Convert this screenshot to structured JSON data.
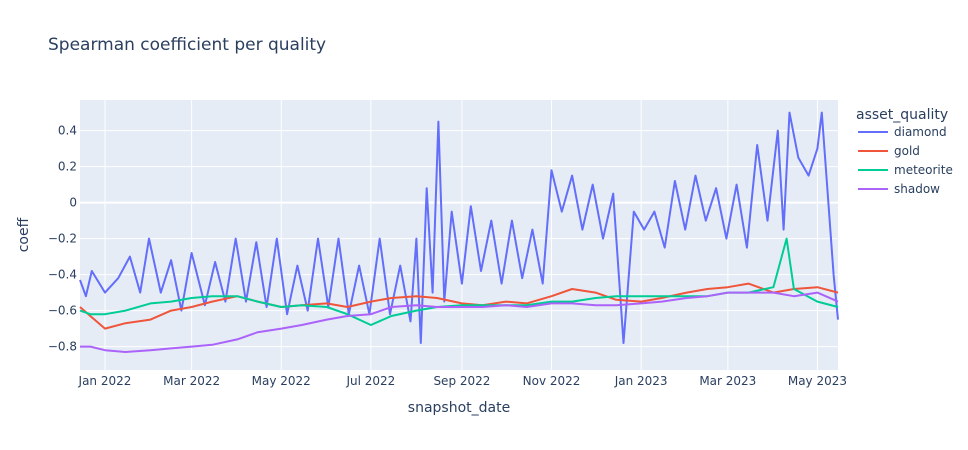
{
  "chart_data": {
    "type": "line",
    "title": "Spearman coefficient per quality",
    "xlabel": "snapshot_date",
    "ylabel": "coeff",
    "xlim": [
      "2021-12-15",
      "2023-05-15"
    ],
    "ylim": [
      -0.93,
      0.57
    ],
    "grid": true,
    "legend_title": "asset_quality",
    "legend_position": "right",
    "x_ticks": [
      {
        "date": "2022-01-01",
        "label": "Jan 2022"
      },
      {
        "date": "2022-03-01",
        "label": "Mar 2022"
      },
      {
        "date": "2022-05-01",
        "label": "May 2022"
      },
      {
        "date": "2022-07-01",
        "label": "Jul 2022"
      },
      {
        "date": "2022-09-01",
        "label": "Sep 2022"
      },
      {
        "date": "2022-11-01",
        "label": "Nov 2022"
      },
      {
        "date": "2023-01-01",
        "label": "Jan 2023"
      },
      {
        "date": "2023-03-01",
        "label": "Mar 2023"
      },
      {
        "date": "2023-05-01",
        "label": "May 2023"
      }
    ],
    "y_ticks": [
      {
        "value": 0.4,
        "label": "0.4"
      },
      {
        "value": 0.2,
        "label": "0.2"
      },
      {
        "value": 0,
        "label": "0"
      },
      {
        "value": -0.2,
        "label": "−0.2"
      },
      {
        "value": -0.4,
        "label": "−0.4"
      },
      {
        "value": -0.6,
        "label": "−0.6"
      },
      {
        "value": -0.8,
        "label": "−0.8"
      }
    ],
    "series": [
      {
        "name": "diamond",
        "color": "#636efa",
        "points": [
          [
            "2021-12-15",
            -0.43
          ],
          [
            "2021-12-19",
            -0.52
          ],
          [
            "2021-12-23",
            -0.38
          ],
          [
            "2022-01-01",
            -0.5
          ],
          [
            "2022-01-10",
            -0.42
          ],
          [
            "2022-01-18",
            -0.3
          ],
          [
            "2022-01-25",
            -0.5
          ],
          [
            "2022-01-31",
            -0.2
          ],
          [
            "2022-02-08",
            -0.5
          ],
          [
            "2022-02-15",
            -0.32
          ],
          [
            "2022-02-22",
            -0.6
          ],
          [
            "2022-03-01",
            -0.28
          ],
          [
            "2022-03-10",
            -0.57
          ],
          [
            "2022-03-17",
            -0.33
          ],
          [
            "2022-03-24",
            -0.55
          ],
          [
            "2022-03-31",
            -0.2
          ],
          [
            "2022-04-07",
            -0.55
          ],
          [
            "2022-04-14",
            -0.22
          ],
          [
            "2022-04-21",
            -0.58
          ],
          [
            "2022-04-28",
            -0.2
          ],
          [
            "2022-05-05",
            -0.62
          ],
          [
            "2022-05-12",
            -0.35
          ],
          [
            "2022-05-19",
            -0.6
          ],
          [
            "2022-05-26",
            -0.2
          ],
          [
            "2022-06-02",
            -0.58
          ],
          [
            "2022-06-09",
            -0.2
          ],
          [
            "2022-06-16",
            -0.62
          ],
          [
            "2022-06-23",
            -0.35
          ],
          [
            "2022-06-30",
            -0.62
          ],
          [
            "2022-07-07",
            -0.2
          ],
          [
            "2022-07-14",
            -0.62
          ],
          [
            "2022-07-21",
            -0.35
          ],
          [
            "2022-07-28",
            -0.66
          ],
          [
            "2022-08-01",
            -0.2
          ],
          [
            "2022-08-04",
            -0.78
          ],
          [
            "2022-08-08",
            0.08
          ],
          [
            "2022-08-12",
            -0.5
          ],
          [
            "2022-08-16",
            0.45
          ],
          [
            "2022-08-20",
            -0.55
          ],
          [
            "2022-08-25",
            -0.05
          ],
          [
            "2022-09-01",
            -0.45
          ],
          [
            "2022-09-07",
            -0.02
          ],
          [
            "2022-09-14",
            -0.38
          ],
          [
            "2022-09-21",
            -0.1
          ],
          [
            "2022-09-28",
            -0.45
          ],
          [
            "2022-10-05",
            -0.1
          ],
          [
            "2022-10-12",
            -0.42
          ],
          [
            "2022-10-19",
            -0.15
          ],
          [
            "2022-10-26",
            -0.45
          ],
          [
            "2022-11-01",
            0.18
          ],
          [
            "2022-11-08",
            -0.05
          ],
          [
            "2022-11-15",
            0.15
          ],
          [
            "2022-11-22",
            -0.15
          ],
          [
            "2022-11-29",
            0.1
          ],
          [
            "2022-12-06",
            -0.2
          ],
          [
            "2022-12-13",
            0.05
          ],
          [
            "2022-12-20",
            -0.78
          ],
          [
            "2022-12-27",
            -0.05
          ],
          [
            "2023-01-03",
            -0.15
          ],
          [
            "2023-01-10",
            -0.05
          ],
          [
            "2023-01-17",
            -0.25
          ],
          [
            "2023-01-24",
            0.12
          ],
          [
            "2023-01-31",
            -0.15
          ],
          [
            "2023-02-07",
            0.15
          ],
          [
            "2023-02-14",
            -0.1
          ],
          [
            "2023-02-21",
            0.08
          ],
          [
            "2023-02-28",
            -0.2
          ],
          [
            "2023-03-07",
            0.1
          ],
          [
            "2023-03-14",
            -0.25
          ],
          [
            "2023-03-21",
            0.32
          ],
          [
            "2023-03-28",
            -0.1
          ],
          [
            "2023-04-04",
            0.4
          ],
          [
            "2023-04-08",
            -0.15
          ],
          [
            "2023-04-12",
            0.5
          ],
          [
            "2023-04-18",
            0.25
          ],
          [
            "2023-04-25",
            0.15
          ],
          [
            "2023-05-01",
            0.3
          ],
          [
            "2023-05-04",
            0.5
          ],
          [
            "2023-05-08",
            0.05
          ],
          [
            "2023-05-12",
            -0.4
          ],
          [
            "2023-05-15",
            -0.65
          ]
        ]
      },
      {
        "name": "gold",
        "color": "#ef553b",
        "points": [
          [
            "2021-12-15",
            -0.58
          ],
          [
            "2021-12-22",
            -0.63
          ],
          [
            "2022-01-01",
            -0.7
          ],
          [
            "2022-01-15",
            -0.67
          ],
          [
            "2022-02-01",
            -0.65
          ],
          [
            "2022-02-15",
            -0.6
          ],
          [
            "2022-03-01",
            -0.58
          ],
          [
            "2022-03-15",
            -0.55
          ],
          [
            "2022-04-01",
            -0.52
          ],
          [
            "2022-04-15",
            -0.55
          ],
          [
            "2022-05-01",
            -0.58
          ],
          [
            "2022-05-15",
            -0.57
          ],
          [
            "2022-06-01",
            -0.56
          ],
          [
            "2022-06-15",
            -0.58
          ],
          [
            "2022-07-01",
            -0.55
          ],
          [
            "2022-07-15",
            -0.53
          ],
          [
            "2022-08-01",
            -0.52
          ],
          [
            "2022-08-15",
            -0.53
          ],
          [
            "2022-09-01",
            -0.56
          ],
          [
            "2022-09-15",
            -0.57
          ],
          [
            "2022-10-01",
            -0.55
          ],
          [
            "2022-10-15",
            -0.56
          ],
          [
            "2022-11-01",
            -0.52
          ],
          [
            "2022-11-15",
            -0.48
          ],
          [
            "2022-12-01",
            -0.5
          ],
          [
            "2022-12-15",
            -0.54
          ],
          [
            "2023-01-01",
            -0.55
          ],
          [
            "2023-01-15",
            -0.53
          ],
          [
            "2023-02-01",
            -0.5
          ],
          [
            "2023-02-15",
            -0.48
          ],
          [
            "2023-03-01",
            -0.47
          ],
          [
            "2023-03-15",
            -0.45
          ],
          [
            "2023-04-01",
            -0.5
          ],
          [
            "2023-04-15",
            -0.48
          ],
          [
            "2023-05-01",
            -0.47
          ],
          [
            "2023-05-15",
            -0.5
          ]
        ]
      },
      {
        "name": "meteorite",
        "color": "#00cc96",
        "points": [
          [
            "2021-12-15",
            -0.6
          ],
          [
            "2021-12-22",
            -0.62
          ],
          [
            "2022-01-01",
            -0.62
          ],
          [
            "2022-01-15",
            -0.6
          ],
          [
            "2022-02-01",
            -0.56
          ],
          [
            "2022-02-15",
            -0.55
          ],
          [
            "2022-03-01",
            -0.53
          ],
          [
            "2022-03-15",
            -0.52
          ],
          [
            "2022-04-01",
            -0.52
          ],
          [
            "2022-04-15",
            -0.55
          ],
          [
            "2022-05-01",
            -0.58
          ],
          [
            "2022-05-15",
            -0.57
          ],
          [
            "2022-06-01",
            -0.58
          ],
          [
            "2022-06-15",
            -0.62
          ],
          [
            "2022-07-01",
            -0.68
          ],
          [
            "2022-07-15",
            -0.63
          ],
          [
            "2022-08-01",
            -0.6
          ],
          [
            "2022-08-15",
            -0.58
          ],
          [
            "2022-09-01",
            -0.57
          ],
          [
            "2022-09-15",
            -0.57
          ],
          [
            "2022-10-01",
            -0.57
          ],
          [
            "2022-10-15",
            -0.57
          ],
          [
            "2022-11-01",
            -0.55
          ],
          [
            "2022-11-15",
            -0.55
          ],
          [
            "2022-12-01",
            -0.53
          ],
          [
            "2022-12-15",
            -0.52
          ],
          [
            "2023-01-01",
            -0.52
          ],
          [
            "2023-01-15",
            -0.52
          ],
          [
            "2023-02-01",
            -0.52
          ],
          [
            "2023-02-15",
            -0.52
          ],
          [
            "2023-03-01",
            -0.5
          ],
          [
            "2023-03-15",
            -0.5
          ],
          [
            "2023-04-01",
            -0.47
          ],
          [
            "2023-04-10",
            -0.2
          ],
          [
            "2023-04-15",
            -0.48
          ],
          [
            "2023-05-01",
            -0.55
          ],
          [
            "2023-05-15",
            -0.58
          ]
        ]
      },
      {
        "name": "shadow",
        "color": "#ab63fa",
        "points": [
          [
            "2021-12-15",
            -0.8
          ],
          [
            "2021-12-22",
            -0.8
          ],
          [
            "2022-01-01",
            -0.82
          ],
          [
            "2022-01-15",
            -0.83
          ],
          [
            "2022-02-01",
            -0.82
          ],
          [
            "2022-02-15",
            -0.81
          ],
          [
            "2022-03-01",
            -0.8
          ],
          [
            "2022-03-15",
            -0.79
          ],
          [
            "2022-04-01",
            -0.76
          ],
          [
            "2022-04-15",
            -0.72
          ],
          [
            "2022-05-01",
            -0.7
          ],
          [
            "2022-05-15",
            -0.68
          ],
          [
            "2022-06-01",
            -0.65
          ],
          [
            "2022-06-15",
            -0.63
          ],
          [
            "2022-07-01",
            -0.62
          ],
          [
            "2022-07-15",
            -0.58
          ],
          [
            "2022-08-01",
            -0.57
          ],
          [
            "2022-08-15",
            -0.58
          ],
          [
            "2022-09-01",
            -0.58
          ],
          [
            "2022-09-15",
            -0.58
          ],
          [
            "2022-10-01",
            -0.57
          ],
          [
            "2022-10-15",
            -0.58
          ],
          [
            "2022-11-01",
            -0.56
          ],
          [
            "2022-11-15",
            -0.56
          ],
          [
            "2022-12-01",
            -0.57
          ],
          [
            "2022-12-15",
            -0.57
          ],
          [
            "2023-01-01",
            -0.56
          ],
          [
            "2023-01-15",
            -0.55
          ],
          [
            "2023-02-01",
            -0.53
          ],
          [
            "2023-02-15",
            -0.52
          ],
          [
            "2023-03-01",
            -0.5
          ],
          [
            "2023-03-15",
            -0.5
          ],
          [
            "2023-04-01",
            -0.5
          ],
          [
            "2023-04-15",
            -0.52
          ],
          [
            "2023-05-01",
            -0.5
          ],
          [
            "2023-05-15",
            -0.55
          ]
        ]
      }
    ]
  }
}
